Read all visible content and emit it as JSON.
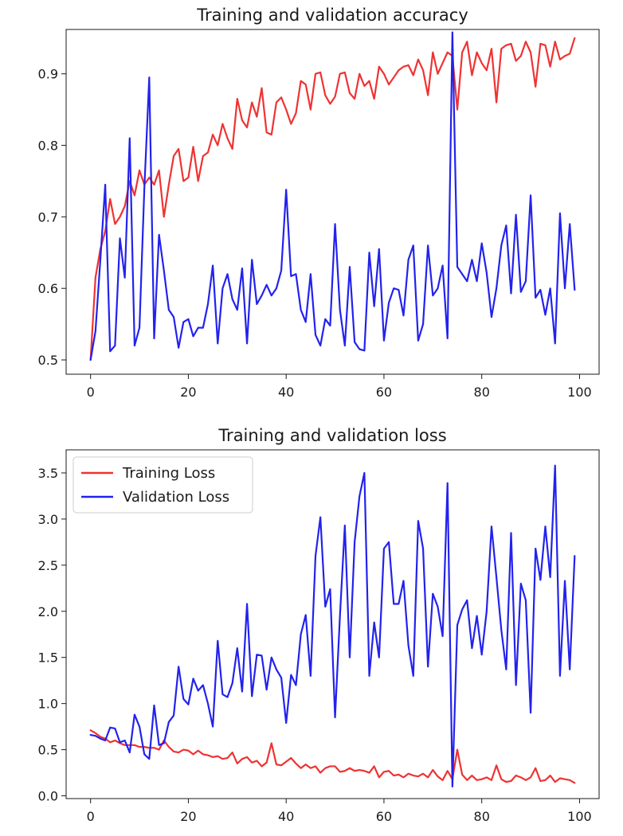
{
  "chart_data": [
    {
      "type": "line",
      "title": "Training and validation accuracy",
      "xlabel": "",
      "ylabel": "",
      "xlim": [
        -5,
        104
      ],
      "ylim": [
        0.48,
        0.962
      ],
      "xticks": [
        0,
        20,
        40,
        60,
        80,
        100
      ],
      "yticks": [
        0.5,
        0.6,
        0.7,
        0.8,
        0.9
      ],
      "xtick_labels": [
        "0",
        "20",
        "40",
        "60",
        "80",
        "100"
      ],
      "ytick_labels": [
        "0.5",
        "0.6",
        "0.7",
        "0.8",
        "0.9"
      ],
      "grid": false,
      "legend": null,
      "x": [
        0,
        1,
        2,
        3,
        4,
        5,
        6,
        7,
        8,
        9,
        10,
        11,
        12,
        13,
        14,
        15,
        16,
        17,
        18,
        19,
        20,
        21,
        22,
        23,
        24,
        25,
        26,
        27,
        28,
        29,
        30,
        31,
        32,
        33,
        34,
        35,
        36,
        37,
        38,
        39,
        40,
        41,
        42,
        43,
        44,
        45,
        46,
        47,
        48,
        49,
        50,
        51,
        52,
        53,
        54,
        55,
        56,
        57,
        58,
        59,
        60,
        61,
        62,
        63,
        64,
        65,
        66,
        67,
        68,
        69,
        70,
        71,
        72,
        73,
        74,
        75,
        76,
        77,
        78,
        79,
        80,
        81,
        82,
        83,
        84,
        85,
        86,
        87,
        88,
        89,
        90,
        91,
        92,
        93,
        94,
        95,
        96,
        97,
        98,
        99
      ],
      "series": [
        {
          "color": "#ee3333",
          "values": [
            0.5,
            0.615,
            0.655,
            0.68,
            0.725,
            0.69,
            0.7,
            0.715,
            0.75,
            0.73,
            0.765,
            0.745,
            0.755,
            0.745,
            0.765,
            0.7,
            0.745,
            0.785,
            0.795,
            0.75,
            0.755,
            0.798,
            0.75,
            0.785,
            0.79,
            0.815,
            0.8,
            0.83,
            0.81,
            0.795,
            0.865,
            0.835,
            0.825,
            0.86,
            0.84,
            0.88,
            0.818,
            0.815,
            0.86,
            0.867,
            0.85,
            0.83,
            0.845,
            0.89,
            0.885,
            0.85,
            0.9,
            0.902,
            0.87,
            0.858,
            0.868,
            0.9,
            0.902,
            0.873,
            0.865,
            0.9,
            0.883,
            0.89,
            0.865,
            0.91,
            0.9,
            0.885,
            0.895,
            0.905,
            0.91,
            0.912,
            0.898,
            0.92,
            0.905,
            0.87,
            0.93,
            0.9,
            0.915,
            0.93,
            0.925,
            0.85,
            0.93,
            0.945,
            0.898,
            0.93,
            0.915,
            0.905,
            0.935,
            0.86,
            0.935,
            0.94,
            0.942,
            0.918,
            0.925,
            0.945,
            0.93,
            0.882,
            0.942,
            0.94,
            0.91,
            0.945,
            0.92,
            0.925,
            0.928,
            0.95
          ]
        },
        {
          "color": "#2222ee",
          "values": [
            0.5,
            0.54,
            0.64,
            0.745,
            0.512,
            0.52,
            0.67,
            0.615,
            0.81,
            0.52,
            0.545,
            0.74,
            0.895,
            0.53,
            0.675,
            0.625,
            0.57,
            0.56,
            0.517,
            0.553,
            0.557,
            0.533,
            0.545,
            0.545,
            0.578,
            0.632,
            0.523,
            0.6,
            0.62,
            0.585,
            0.57,
            0.628,
            0.523,
            0.64,
            0.578,
            0.59,
            0.605,
            0.59,
            0.6,
            0.625,
            0.738,
            0.617,
            0.62,
            0.57,
            0.553,
            0.62,
            0.535,
            0.52,
            0.557,
            0.548,
            0.69,
            0.57,
            0.52,
            0.63,
            0.525,
            0.515,
            0.513,
            0.65,
            0.575,
            0.655,
            0.527,
            0.58,
            0.6,
            0.598,
            0.562,
            0.64,
            0.66,
            0.527,
            0.55,
            0.66,
            0.59,
            0.6,
            0.632,
            0.53,
            0.958,
            0.63,
            0.62,
            0.61,
            0.64,
            0.61,
            0.663,
            0.622,
            0.56,
            0.6,
            0.66,
            0.688,
            0.593,
            0.703,
            0.595,
            0.61,
            0.73,
            0.587,
            0.598,
            0.563,
            0.6,
            0.523,
            0.705,
            0.6,
            0.69,
            0.598
          ]
        }
      ]
    },
    {
      "type": "line",
      "title": "Training and validation loss",
      "xlabel": "",
      "ylabel": "",
      "xlim": [
        -5,
        104
      ],
      "ylim": [
        -0.03,
        3.75
      ],
      "xticks": [
        0,
        20,
        40,
        60,
        80,
        100
      ],
      "yticks": [
        0.0,
        0.5,
        1.0,
        1.5,
        2.0,
        2.5,
        3.0,
        3.5
      ],
      "xtick_labels": [
        "0",
        "20",
        "40",
        "60",
        "80",
        "100"
      ],
      "ytick_labels": [
        "0.0",
        "0.5",
        "1.0",
        "1.5",
        "2.0",
        "2.5",
        "3.0",
        "3.5"
      ],
      "grid": false,
      "legend": "upper-left",
      "x": [
        0,
        1,
        2,
        3,
        4,
        5,
        6,
        7,
        8,
        9,
        10,
        11,
        12,
        13,
        14,
        15,
        16,
        17,
        18,
        19,
        20,
        21,
        22,
        23,
        24,
        25,
        26,
        27,
        28,
        29,
        30,
        31,
        32,
        33,
        34,
        35,
        36,
        37,
        38,
        39,
        40,
        41,
        42,
        43,
        44,
        45,
        46,
        47,
        48,
        49,
        50,
        51,
        52,
        53,
        54,
        55,
        56,
        57,
        58,
        59,
        60,
        61,
        62,
        63,
        64,
        65,
        66,
        67,
        68,
        69,
        70,
        71,
        72,
        73,
        74,
        75,
        76,
        77,
        78,
        79,
        80,
        81,
        82,
        83,
        84,
        85,
        86,
        87,
        88,
        89,
        90,
        91,
        92,
        93,
        94,
        95,
        96,
        97,
        98,
        99
      ],
      "series": [
        {
          "name": "Training Loss",
          "color": "#ee3333",
          "values": [
            0.71,
            0.68,
            0.64,
            0.62,
            0.58,
            0.6,
            0.57,
            0.55,
            0.55,
            0.55,
            0.53,
            0.53,
            0.52,
            0.52,
            0.5,
            0.6,
            0.53,
            0.48,
            0.47,
            0.5,
            0.49,
            0.45,
            0.49,
            0.45,
            0.44,
            0.42,
            0.43,
            0.4,
            0.41,
            0.47,
            0.35,
            0.4,
            0.42,
            0.36,
            0.38,
            0.32,
            0.36,
            0.57,
            0.34,
            0.33,
            0.37,
            0.41,
            0.35,
            0.3,
            0.34,
            0.3,
            0.32,
            0.25,
            0.3,
            0.32,
            0.32,
            0.26,
            0.27,
            0.3,
            0.27,
            0.28,
            0.27,
            0.25,
            0.32,
            0.2,
            0.26,
            0.27,
            0.22,
            0.23,
            0.2,
            0.24,
            0.22,
            0.21,
            0.24,
            0.2,
            0.28,
            0.21,
            0.17,
            0.27,
            0.18,
            0.5,
            0.23,
            0.17,
            0.22,
            0.17,
            0.18,
            0.2,
            0.17,
            0.33,
            0.18,
            0.15,
            0.16,
            0.22,
            0.2,
            0.17,
            0.2,
            0.3,
            0.16,
            0.17,
            0.22,
            0.15,
            0.19,
            0.18,
            0.17,
            0.14
          ]
        },
        {
          "name": "Validation Loss",
          "color": "#2222ee",
          "values": [
            0.66,
            0.65,
            0.62,
            0.6,
            0.74,
            0.73,
            0.58,
            0.6,
            0.47,
            0.88,
            0.75,
            0.45,
            0.4,
            0.98,
            0.55,
            0.57,
            0.8,
            0.87,
            1.4,
            1.05,
            0.99,
            1.27,
            1.14,
            1.2,
            1.0,
            0.75,
            1.68,
            1.1,
            1.07,
            1.22,
            1.6,
            1.13,
            2.08,
            1.08,
            1.53,
            1.52,
            1.15,
            1.5,
            1.37,
            1.28,
            0.79,
            1.31,
            1.2,
            1.75,
            1.96,
            1.3,
            2.6,
            3.02,
            2.05,
            2.24,
            0.85,
            1.95,
            2.93,
            1.5,
            2.75,
            3.25,
            3.5,
            1.3,
            1.88,
            1.5,
            2.68,
            2.75,
            2.08,
            2.08,
            2.33,
            1.63,
            1.3,
            2.98,
            2.68,
            1.4,
            2.19,
            2.05,
            1.73,
            3.39,
            0.1,
            1.85,
            2.02,
            2.12,
            1.6,
            1.95,
            1.53,
            2.0,
            2.92,
            2.37,
            1.8,
            1.37,
            2.85,
            1.2,
            2.3,
            2.12,
            0.9,
            2.68,
            2.34,
            2.92,
            2.37,
            3.58,
            1.3,
            2.33,
            1.37,
            2.6
          ]
        }
      ]
    }
  ]
}
